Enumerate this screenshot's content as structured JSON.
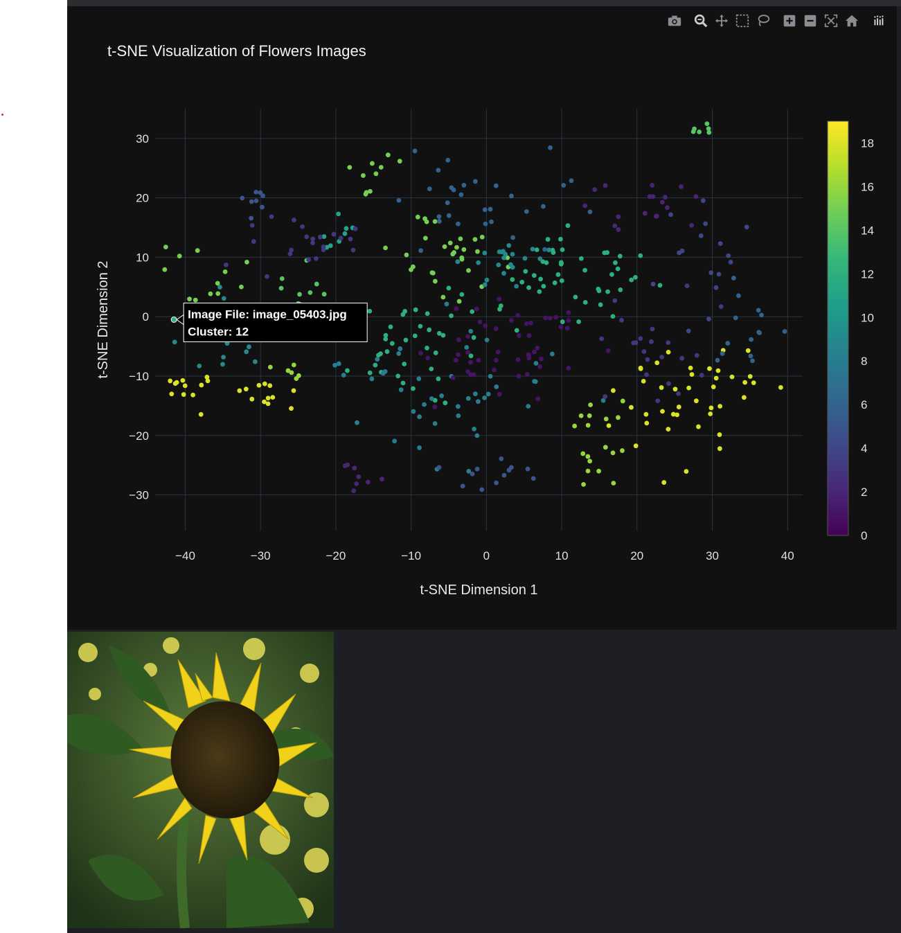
{
  "toolbar": {
    "icons": [
      "camera-icon",
      "zoom-icon",
      "pan-icon",
      "box-select-icon",
      "lasso-select-icon",
      "zoom-in-icon",
      "zoom-out-icon",
      "autoscale-icon",
      "reset-axes-icon",
      "plotly-logo-icon"
    ]
  },
  "chart_data": {
    "type": "scatter",
    "title": "t-SNE Visualization of Flowers Images",
    "xlabel": "t-SNE Dimension 1",
    "ylabel": "t-SNE Dimension 2",
    "xlim": [
      -44,
      42
    ],
    "ylim": [
      -36,
      35
    ],
    "xticks": [
      -40,
      -30,
      -20,
      -10,
      0,
      10,
      20,
      30,
      40
    ],
    "xtick_labels": [
      "−40",
      "−30",
      "−20",
      "−10",
      "0",
      "10",
      "20",
      "30",
      "40"
    ],
    "yticks": [
      30,
      20,
      10,
      0,
      -10,
      -20,
      -30
    ],
    "ytick_labels": [
      "30",
      "20",
      "10",
      "0",
      "−10",
      "−20",
      "−30"
    ],
    "grid": true,
    "colorscale": "Viridis",
    "colorbar": {
      "min": 0,
      "max": 19,
      "ticks": [
        18,
        16,
        14,
        12,
        10,
        8,
        6,
        4,
        2,
        0
      ]
    },
    "clusters": [
      {
        "cluster": 18,
        "center": [
          -40,
          -12
        ],
        "spread": [
          2,
          2
        ],
        "n": 12
      },
      {
        "cluster": 18,
        "center": [
          -30,
          -13
        ],
        "spread": [
          1.5,
          2
        ],
        "n": 12
      },
      {
        "cluster": 18,
        "center": [
          25,
          -16
        ],
        "spread": [
          4,
          4
        ],
        "n": 28
      },
      {
        "cluster": 18,
        "center": [
          32,
          -12
        ],
        "spread": [
          3,
          4
        ],
        "n": 14
      },
      {
        "cluster": 16,
        "center": [
          -26,
          -11
        ],
        "spread": [
          1.5,
          2
        ],
        "n": 6
      },
      {
        "cluster": 16,
        "center": [
          15,
          -19
        ],
        "spread": [
          2,
          3
        ],
        "n": 12
      },
      {
        "cluster": 16,
        "center": [
          15,
          -26
        ],
        "spread": [
          1,
          2
        ],
        "n": 6
      },
      {
        "cluster": 15,
        "center": [
          -15,
          24
        ],
        "spread": [
          2,
          1.5
        ],
        "n": 10
      },
      {
        "cluster": 15,
        "center": [
          -37,
          7
        ],
        "spread": [
          3,
          2
        ],
        "n": 12
      },
      {
        "cluster": 15,
        "center": [
          -5,
          10
        ],
        "spread": [
          4,
          3
        ],
        "n": 30
      },
      {
        "cluster": 14,
        "center": [
          -25,
          4
        ],
        "spread": [
          2,
          2.5
        ],
        "n": 12
      },
      {
        "cluster": 14,
        "center": [
          28,
          31
        ],
        "spread": [
          1,
          1
        ],
        "n": 6
      },
      {
        "cluster": 12,
        "center": [
          -10,
          -5
        ],
        "spread": [
          5,
          4
        ],
        "n": 40
      },
      {
        "cluster": 12,
        "center": [
          10,
          6
        ],
        "spread": [
          6,
          4
        ],
        "n": 50
      },
      {
        "cluster": 11,
        "center": [
          -19,
          14
        ],
        "spread": [
          1.5,
          1.5
        ],
        "n": 8
      },
      {
        "cluster": 9,
        "center": [
          2,
          10
        ],
        "spread": [
          3,
          2
        ],
        "n": 20
      },
      {
        "cluster": 9,
        "center": [
          -35,
          -4
        ],
        "spread": [
          3,
          4
        ],
        "n": 18
      },
      {
        "cluster": 8,
        "center": [
          -5,
          -12
        ],
        "spread": [
          8,
          6
        ],
        "n": 45
      },
      {
        "cluster": 6,
        "center": [
          0,
          20
        ],
        "spread": [
          6,
          5
        ],
        "n": 30
      },
      {
        "cluster": 6,
        "center": [
          35,
          -2
        ],
        "spread": [
          2,
          5
        ],
        "n": 14
      },
      {
        "cluster": 5,
        "center": [
          -31,
          20
        ],
        "spread": [
          1,
          2
        ],
        "n": 8
      },
      {
        "cluster": 5,
        "center": [
          2,
          -26
        ],
        "spread": [
          3,
          2
        ],
        "n": 12
      },
      {
        "cluster": 4,
        "center": [
          28,
          10
        ],
        "spread": [
          3,
          6
        ],
        "n": 16
      },
      {
        "cluster": 3,
        "center": [
          -25,
          12
        ],
        "spread": [
          4,
          3
        ],
        "n": 22
      },
      {
        "cluster": 3,
        "center": [
          22,
          -5
        ],
        "spread": [
          5,
          5
        ],
        "n": 22
      },
      {
        "cluster": 2,
        "center": [
          -18,
          -26
        ],
        "spread": [
          2,
          1.5
        ],
        "n": 8
      },
      {
        "cluster": 2,
        "center": [
          20,
          20
        ],
        "spread": [
          4,
          3
        ],
        "n": 18
      },
      {
        "cluster": 1,
        "center": [
          3,
          -6
        ],
        "spread": [
          6,
          5
        ],
        "n": 50
      }
    ],
    "highlight_point": {
      "x": -41.5,
      "y": -0.5,
      "cluster": 12
    },
    "hover": {
      "line1": "Image File: image_05403.jpg",
      "line2": "Cluster: 12"
    }
  }
}
